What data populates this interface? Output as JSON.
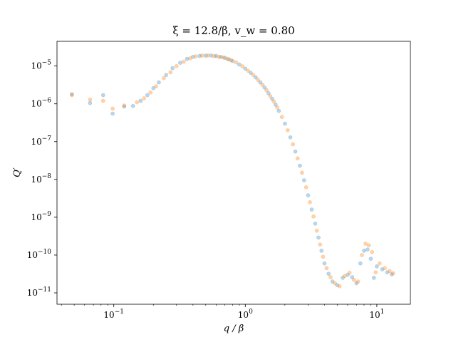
{
  "chart_data": {
    "type": "scatter",
    "title": "ξ = 12.8/β, v_w = 0.80",
    "xlabel": "q / β",
    "ylabel": "Q′",
    "xscale": "log",
    "yscale": "log",
    "xlim": [
      0.037,
      18
    ],
    "ylim": [
      5e-12,
      4.5e-05
    ],
    "x_ticks": [
      {
        "value": 0.1,
        "base": "10",
        "exp": "−1"
      },
      {
        "value": 1,
        "base": "10",
        "exp": "0"
      },
      {
        "value": 10,
        "base": "10",
        "exp": "1"
      }
    ],
    "y_ticks": [
      {
        "value": 1e-11,
        "base": "10",
        "exp": "−11"
      },
      {
        "value": 1e-10,
        "base": "10",
        "exp": "−10"
      },
      {
        "value": 1e-09,
        "base": "10",
        "exp": "−9"
      },
      {
        "value": 1e-08,
        "base": "10",
        "exp": "−8"
      },
      {
        "value": 1e-07,
        "base": "10",
        "exp": "−7"
      },
      {
        "value": 1e-06,
        "base": "10",
        "exp": "−6"
      },
      {
        "value": 1e-05,
        "base": "10",
        "exp": "−5"
      }
    ],
    "grid": false,
    "legend": "none",
    "series": [
      {
        "color": "#1f77b4",
        "alpha": 0.3,
        "x": [
          0.048,
          0.066,
          0.083,
          0.098,
          0.12,
          0.14,
          0.16,
          0.18,
          0.2,
          0.22,
          0.25,
          0.28,
          0.32,
          0.36,
          0.4,
          0.45,
          0.5,
          0.55,
          0.6,
          0.65,
          0.7,
          0.75,
          0.8,
          0.9,
          1.0,
          1.1,
          1.2,
          1.3,
          1.4,
          1.5,
          1.6,
          1.7,
          1.8,
          2.0,
          2.2,
          2.4,
          2.6,
          2.8,
          3.0,
          3.2,
          3.4,
          3.6,
          3.8,
          4.0,
          4.3,
          4.6,
          5.0,
          5.5,
          6.0,
          6.5,
          7.0,
          7.5,
          8.0,
          8.5,
          9.0,
          9.5,
          10.0,
          11.0,
          12.0,
          13.0
        ],
        "y": [
          1.8e-06,
          1.05e-06,
          1.7e-06,
          5.5e-07,
          8.5e-07,
          8.8e-07,
          1.2e-06,
          1.7e-06,
          2.6e-06,
          3.7e-06,
          5.8e-06,
          8.8e-06,
          1.22e-05,
          1.55e-05,
          1.75e-05,
          1.85e-05,
          1.88e-05,
          1.9e-05,
          1.85e-05,
          1.75e-05,
          1.65e-05,
          1.5e-05,
          1.35e-05,
          1.1e-05,
          8.5e-06,
          6.6e-06,
          5e-06,
          3.7e-06,
          2.7e-06,
          1.9e-06,
          1.35e-06,
          9.5e-07,
          6.5e-07,
          3e-07,
          1.3e-07,
          5.5e-08,
          2.3e-08,
          9.5e-09,
          3.8e-09,
          1.6e-09,
          6.8e-10,
          2.9e-10,
          1.3e-10,
          6e-11,
          3.2e-11,
          2e-11,
          1.6e-11,
          2.5e-11,
          3e-11,
          2.6e-11,
          1.8e-11,
          6e-11,
          1.3e-10,
          1.4e-10,
          8e-11,
          2.5e-11,
          5e-11,
          4.2e-11,
          3.5e-11,
          3.1e-11
        ]
      },
      {
        "color": "#ff7f0e",
        "alpha": 0.35,
        "x": [
          0.048,
          0.066,
          0.083,
          0.098,
          0.12,
          0.15,
          0.17,
          0.19,
          0.21,
          0.24,
          0.27,
          0.3,
          0.34,
          0.38,
          0.42,
          0.47,
          0.52,
          0.58,
          0.63,
          0.68,
          0.73,
          0.78,
          0.85,
          0.95,
          1.05,
          1.15,
          1.25,
          1.35,
          1.45,
          1.55,
          1.65,
          1.75,
          1.9,
          2.1,
          2.3,
          2.5,
          2.7,
          2.9,
          3.1,
          3.3,
          3.5,
          3.7,
          3.9,
          4.15,
          4.45,
          4.8,
          5.2,
          5.7,
          6.2,
          6.7,
          7.2,
          7.7,
          8.2,
          8.7,
          9.2,
          9.8,
          10.5,
          11.5,
          12.5,
          13.3
        ],
        "y": [
          1.7e-06,
          1.3e-06,
          1.2e-06,
          7.5e-07,
          9e-07,
          1.1e-06,
          1.4e-06,
          2e-06,
          2.9e-06,
          4.8e-06,
          6.8e-06,
          1e-05,
          1.3e-05,
          1.6e-05,
          1.8e-05,
          1.9e-05,
          1.9e-05,
          1.82e-05,
          1.75e-05,
          1.68e-05,
          1.55e-05,
          1.42e-05,
          1.25e-05,
          9.8e-06,
          7.5e-06,
          5.8e-06,
          4.3e-06,
          3.2e-06,
          2.3e-06,
          1.6e-06,
          1.15e-06,
          8e-07,
          4.5e-07,
          2e-07,
          8.5e-08,
          3.6e-08,
          1.5e-08,
          6.2e-09,
          2.5e-09,
          1.05e-09,
          4.4e-10,
          1.9e-10,
          9e-11,
          4.5e-11,
          2.6e-11,
          1.8e-11,
          1.5e-11,
          2.8e-11,
          3.4e-11,
          2.2e-11,
          2e-11,
          1e-10,
          2e-10,
          1.8e-10,
          1.2e-10,
          3.5e-11,
          6e-11,
          4.5e-11,
          3.8e-11,
          3.3e-11
        ]
      }
    ]
  }
}
